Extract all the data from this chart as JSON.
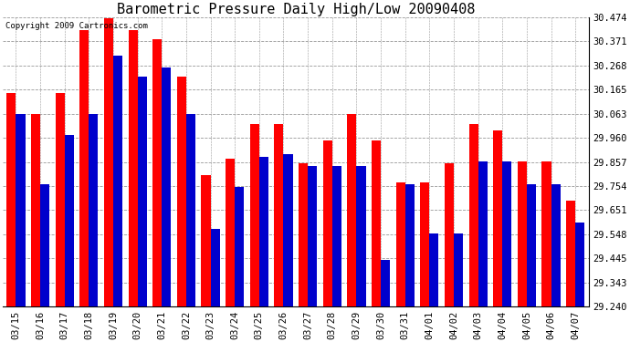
{
  "title": "Barometric Pressure Daily High/Low 20090408",
  "copyright": "Copyright 2009 Cartronics.com",
  "dates": [
    "03/15",
    "03/16",
    "03/17",
    "03/18",
    "03/19",
    "03/20",
    "03/21",
    "03/22",
    "03/23",
    "03/24",
    "03/25",
    "03/26",
    "03/27",
    "03/28",
    "03/29",
    "03/30",
    "03/31",
    "04/01",
    "04/02",
    "04/03",
    "04/04",
    "04/05",
    "04/06",
    "04/07"
  ],
  "highs": [
    30.15,
    30.06,
    30.15,
    30.42,
    30.47,
    30.42,
    30.38,
    30.22,
    29.8,
    29.87,
    30.02,
    30.02,
    29.85,
    29.95,
    30.06,
    29.95,
    29.77,
    29.77,
    29.85,
    30.02,
    29.99,
    29.86,
    29.86,
    29.69
  ],
  "lows": [
    30.06,
    29.76,
    29.97,
    30.06,
    30.31,
    30.22,
    30.26,
    30.06,
    29.57,
    29.75,
    29.88,
    29.89,
    29.84,
    29.84,
    29.84,
    29.44,
    29.76,
    29.55,
    29.55,
    29.86,
    29.86,
    29.76,
    29.76,
    29.6
  ],
  "ymin": 29.24,
  "ylim": [
    29.24,
    30.474
  ],
  "yticks": [
    29.24,
    29.343,
    29.445,
    29.548,
    29.651,
    29.754,
    29.857,
    29.96,
    30.063,
    30.165,
    30.268,
    30.371,
    30.474
  ],
  "high_color": "#ff0000",
  "low_color": "#0000cc",
  "bg_color": "#ffffff",
  "grid_color": "#999999",
  "title_fontsize": 11,
  "tick_fontsize": 7.5,
  "copyright_fontsize": 6.5
}
